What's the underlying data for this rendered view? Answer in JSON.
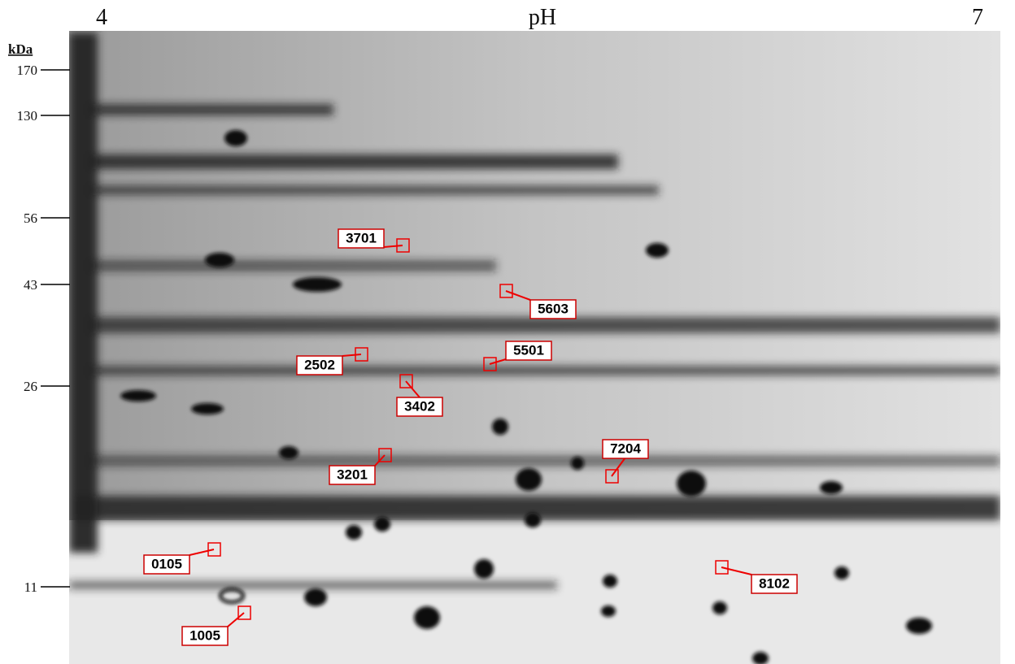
{
  "axis": {
    "ph_label": "pH",
    "ph_start": "4",
    "ph_end": "7",
    "mw_unit": "kDa",
    "mw_markers": [
      "170",
      "130",
      "56",
      "43",
      "26",
      "11"
    ]
  },
  "spots": [
    {
      "label": "3701"
    },
    {
      "label": "5603"
    },
    {
      "label": "2502"
    },
    {
      "label": "5501"
    },
    {
      "label": "3402"
    },
    {
      "label": "3201"
    },
    {
      "label": "7204"
    },
    {
      "label": "0105"
    },
    {
      "label": "8102"
    },
    {
      "label": "1005"
    }
  ]
}
